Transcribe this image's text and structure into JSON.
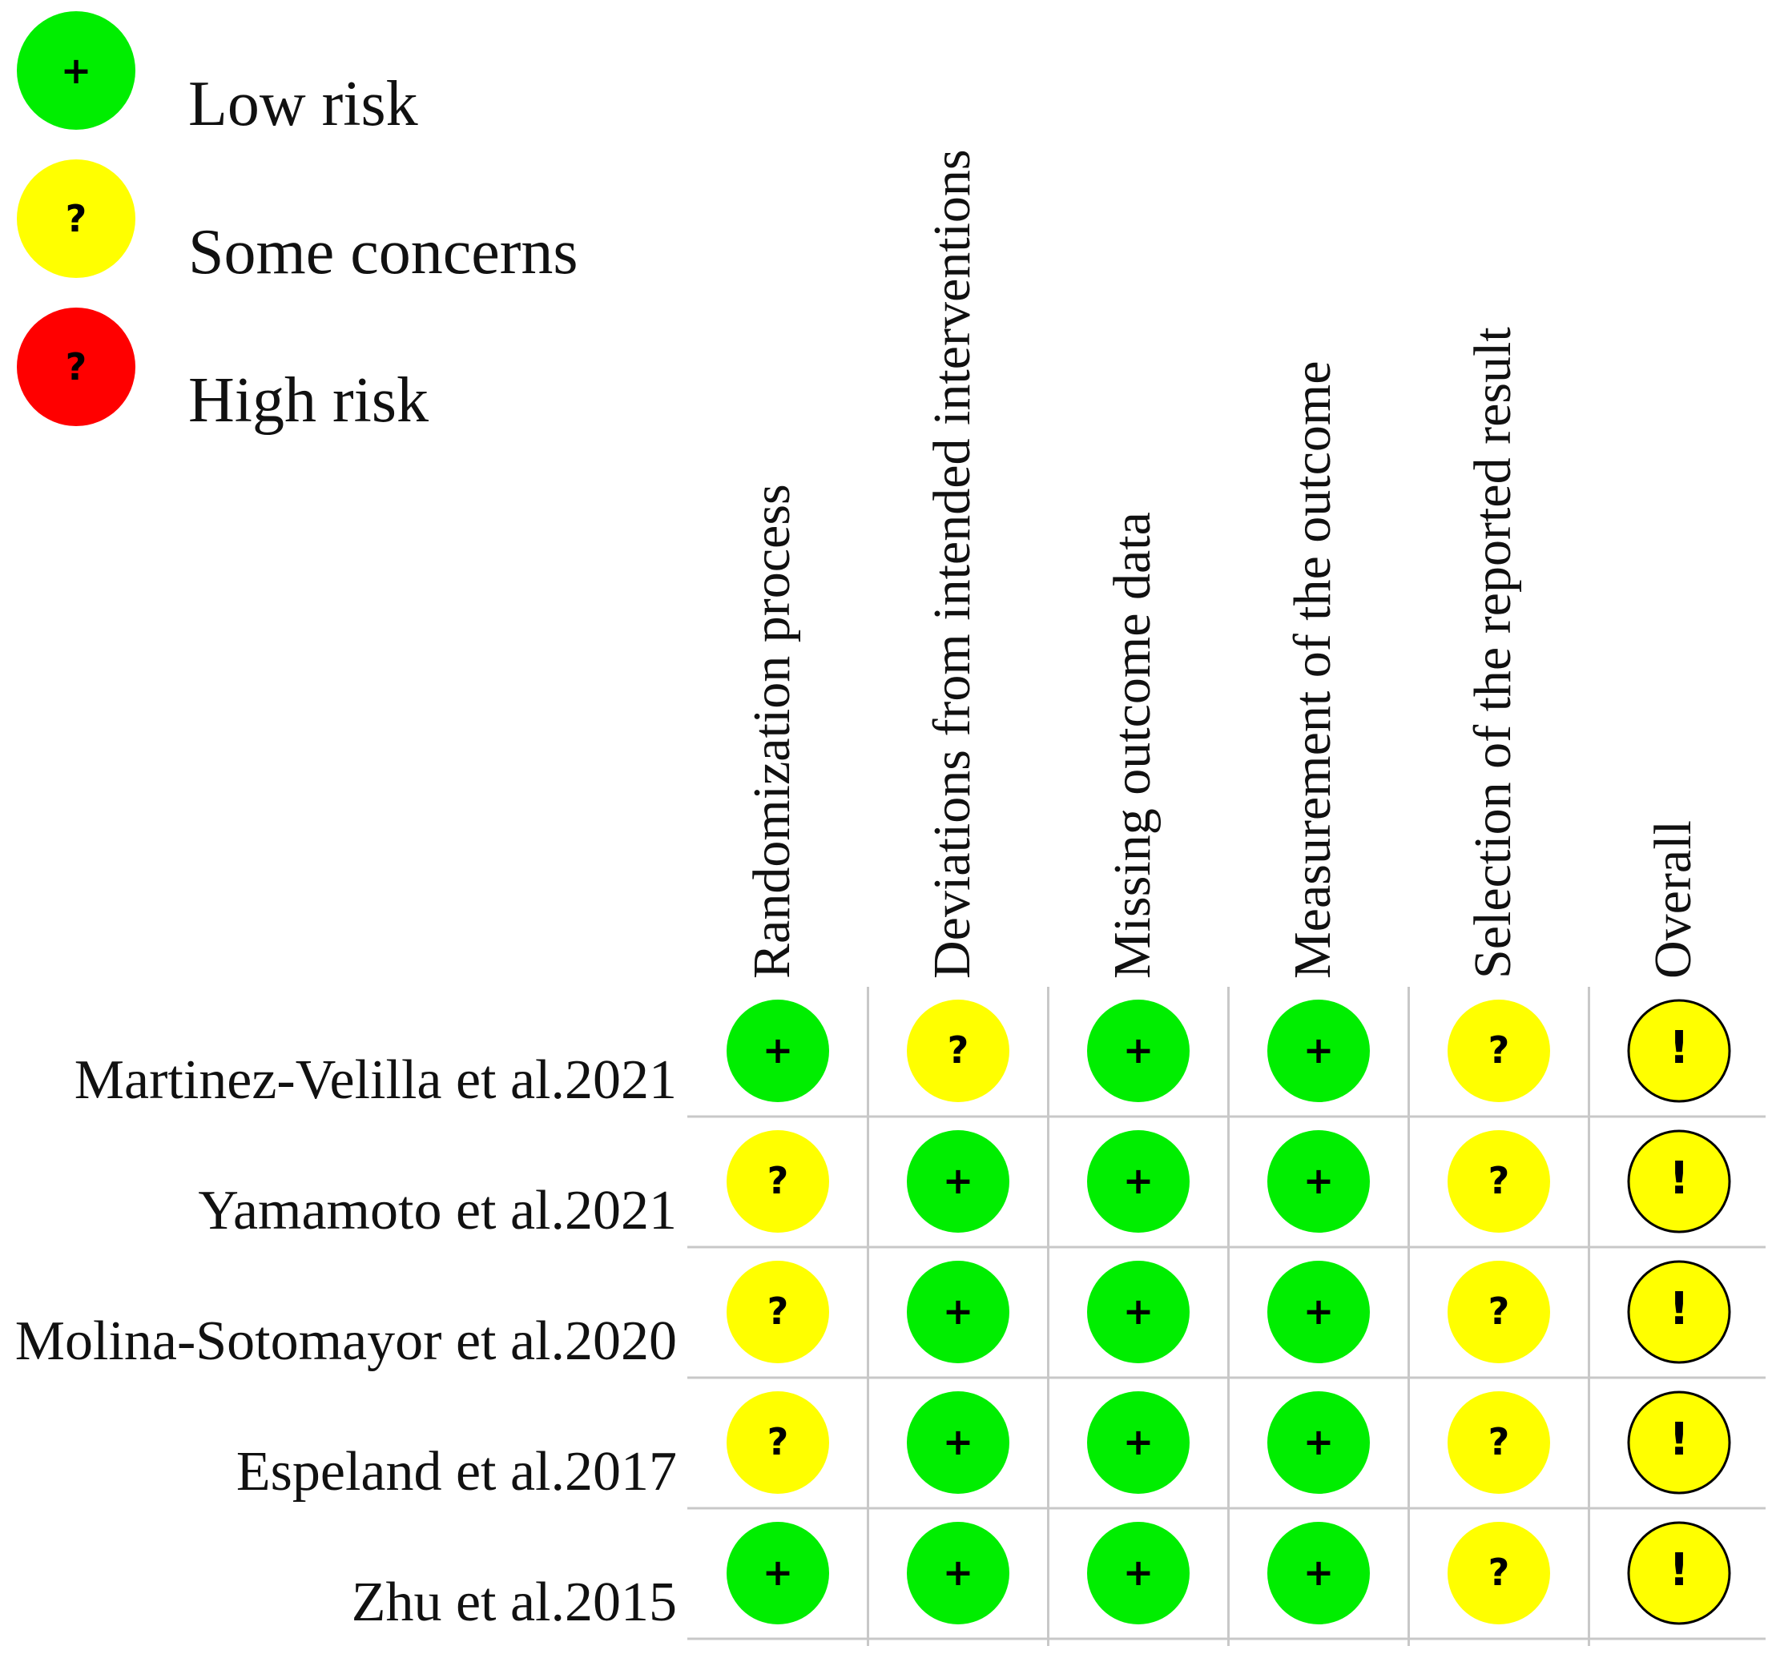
{
  "chart_data": {
    "type": "table",
    "legend": [
      {
        "key": "low",
        "label": "Low risk",
        "color": "#00ee00",
        "symbol": "+"
      },
      {
        "key": "some",
        "label": "Some concerns",
        "color": "#ffff00",
        "symbol": "?"
      },
      {
        "key": "high",
        "label": "High risk",
        "color": "#ff0000",
        "symbol": "?"
      }
    ],
    "columns": [
      "Randomization process",
      "Deviations from intended interventions",
      "Missing outcome data",
      "Measurement of the outcome",
      "Selection of the reported result",
      "Overall"
    ],
    "rows": [
      {
        "study": "Martinez-Velilla et al.2021",
        "judgements": [
          "low",
          "some",
          "low",
          "low",
          "some",
          "overall_some"
        ]
      },
      {
        "study": "Yamamoto et al.2021",
        "judgements": [
          "some",
          "low",
          "low",
          "low",
          "some",
          "overall_some"
        ]
      },
      {
        "study": "Molina-Sotomayor et al.2020",
        "judgements": [
          "some",
          "low",
          "low",
          "low",
          "some",
          "overall_some"
        ]
      },
      {
        "study": "Espeland et al.2017",
        "judgements": [
          "some",
          "low",
          "low",
          "low",
          "some",
          "overall_some"
        ]
      },
      {
        "study": "Zhu et al.2015",
        "judgements": [
          "low",
          "low",
          "low",
          "low",
          "some",
          "overall_some"
        ]
      }
    ],
    "overall_style": {
      "color": "#ffff00",
      "symbol": "!",
      "outlined": true
    }
  }
}
